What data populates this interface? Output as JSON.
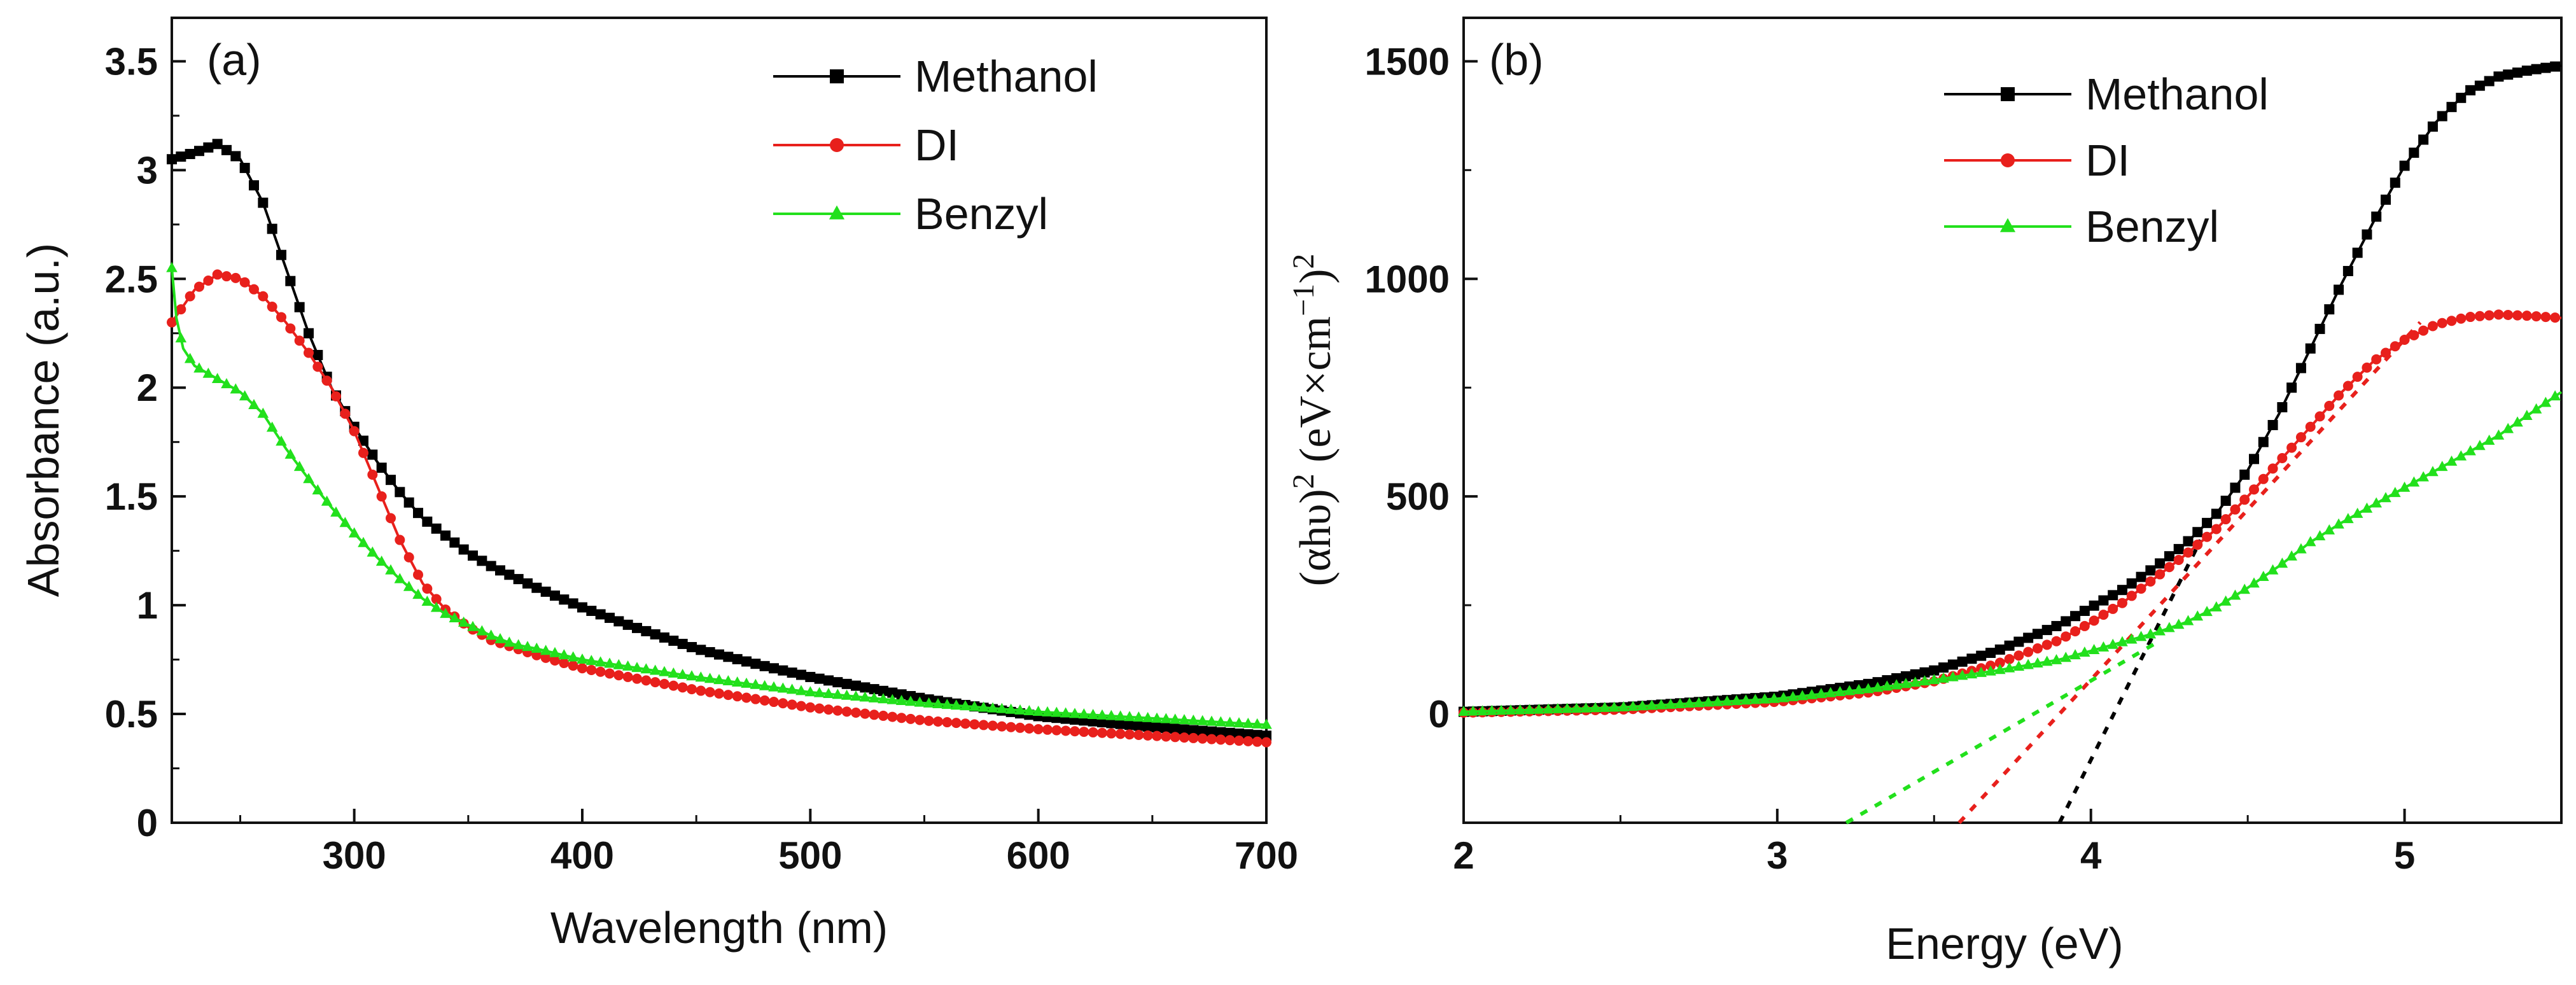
{
  "chart_data": [
    {
      "type": "line",
      "panel_label": "(a)",
      "xlabel": "Wavelength (nm)",
      "ylabel": "Absorbance (a.u.)",
      "xlim": [
        220,
        700
      ],
      "ylim": [
        0,
        3.7
      ],
      "x_ticks": [
        300,
        400,
        500,
        600,
        700
      ],
      "y_ticks": [
        0,
        0.5,
        1,
        1.5,
        2,
        2.5,
        3,
        3.5
      ],
      "y_tick_labels": [
        "0",
        "0.5",
        "1",
        "1.5",
        "2",
        "2.5",
        "3",
        "3.5"
      ],
      "legend_position": "top-right",
      "series": [
        {
          "name": "Methanol",
          "color": "#000000",
          "marker": "square",
          "x": [
            220,
            230,
            240,
            250,
            260,
            270,
            280,
            290,
            300,
            310,
            320,
            330,
            340,
            350,
            360,
            380,
            400,
            420,
            450,
            480,
            500,
            550,
            600,
            650,
            700
          ],
          "y": [
            3.05,
            3.08,
            3.12,
            3.05,
            2.85,
            2.55,
            2.25,
            2.0,
            1.82,
            1.66,
            1.52,
            1.4,
            1.32,
            1.24,
            1.18,
            1.08,
            0.99,
            0.91,
            0.8,
            0.72,
            0.67,
            0.57,
            0.49,
            0.44,
            0.4
          ]
        },
        {
          "name": "DI",
          "color": "#e8201c",
          "marker": "circle",
          "x": [
            220,
            230,
            240,
            250,
            260,
            270,
            280,
            290,
            300,
            310,
            320,
            330,
            340,
            350,
            360,
            380,
            400,
            420,
            450,
            500,
            550,
            600,
            650,
            700
          ],
          "y": [
            2.3,
            2.45,
            2.52,
            2.5,
            2.42,
            2.3,
            2.16,
            2.0,
            1.8,
            1.55,
            1.3,
            1.1,
            0.98,
            0.9,
            0.84,
            0.77,
            0.71,
            0.67,
            0.61,
            0.53,
            0.47,
            0.43,
            0.4,
            0.37
          ]
        },
        {
          "name": "Benzyl",
          "color": "#22e01c",
          "marker": "triangle",
          "x": [
            220,
            222,
            225,
            230,
            240,
            250,
            260,
            270,
            280,
            290,
            300,
            310,
            320,
            330,
            340,
            350,
            360,
            370,
            380,
            400,
            450,
            500,
            550,
            600,
            650,
            700
          ],
          "y": [
            2.55,
            2.32,
            2.18,
            2.1,
            2.04,
            1.98,
            1.88,
            1.72,
            1.58,
            1.45,
            1.33,
            1.22,
            1.12,
            1.03,
            0.96,
            0.91,
            0.86,
            0.82,
            0.8,
            0.75,
            0.67,
            0.6,
            0.55,
            0.51,
            0.48,
            0.45
          ]
        }
      ]
    },
    {
      "type": "line",
      "panel_label": "(b)",
      "xlabel": "Energy (eV)",
      "ylabel_parts": [
        "(αhυ)",
        "2",
        " (eV×cm",
        "−1",
        ")",
        "2"
      ],
      "xlim": [
        2,
        5.5
      ],
      "ylim": [
        -250,
        1600
      ],
      "x_ticks": [
        2,
        3,
        4,
        5
      ],
      "y_ticks": [
        0,
        500,
        1000,
        1500
      ],
      "legend_position": "top-right",
      "series": [
        {
          "name": "Methanol",
          "color": "#000000",
          "marker": "square",
          "x": [
            2.0,
            2.5,
            3.0,
            3.3,
            3.5,
            3.7,
            3.9,
            4.0,
            4.1,
            4.2,
            4.3,
            4.4,
            4.5,
            4.6,
            4.7,
            4.8,
            4.9,
            5.0,
            5.1,
            5.2,
            5.3,
            5.4,
            5.5
          ],
          "y": [
            5,
            15,
            40,
            70,
            100,
            145,
            205,
            245,
            285,
            335,
            390,
            460,
            560,
            690,
            840,
            990,
            1130,
            1260,
            1360,
            1430,
            1465,
            1480,
            1490
          ]
        },
        {
          "name": "DI",
          "color": "#e8201c",
          "marker": "circle",
          "x": [
            2.0,
            2.5,
            3.0,
            3.3,
            3.5,
            3.7,
            3.9,
            4.0,
            4.1,
            4.2,
            4.3,
            4.4,
            4.5,
            4.6,
            4.7,
            4.8,
            4.9,
            5.0,
            5.1,
            5.2,
            5.3,
            5.4,
            5.5
          ],
          "y": [
            3,
            10,
            28,
            50,
            75,
            115,
            170,
            210,
            255,
            310,
            365,
            425,
            500,
            580,
            660,
            740,
            810,
            860,
            895,
            912,
            918,
            915,
            910
          ]
        },
        {
          "name": "Benzyl",
          "color": "#22e01c",
          "marker": "triangle",
          "x": [
            2.0,
            2.5,
            3.0,
            3.3,
            3.5,
            3.7,
            3.9,
            4.0,
            4.1,
            4.2,
            4.3,
            4.4,
            4.5,
            4.6,
            4.7,
            4.8,
            4.9,
            5.0,
            5.1,
            5.2,
            5.3,
            5.4,
            5.5
          ],
          "y": [
            5,
            15,
            35,
            58,
            78,
            100,
            125,
            145,
            165,
            185,
            210,
            245,
            290,
            340,
            395,
            440,
            480,
            520,
            560,
            600,
            640,
            690,
            740
          ]
        }
      ],
      "tangent_lines": [
        {
          "series": "Methanol",
          "color": "#000000",
          "from": [
            3.9,
            -250
          ],
          "to": [
            4.35,
            400
          ]
        },
        {
          "series": "DI",
          "color": "#e8201c",
          "from": [
            3.58,
            -250
          ],
          "to": [
            5.05,
            900
          ]
        },
        {
          "series": "Benzyl",
          "color": "#22e01c",
          "from": [
            3.22,
            -250
          ],
          "to": [
            4.2,
            160
          ]
        }
      ]
    }
  ]
}
